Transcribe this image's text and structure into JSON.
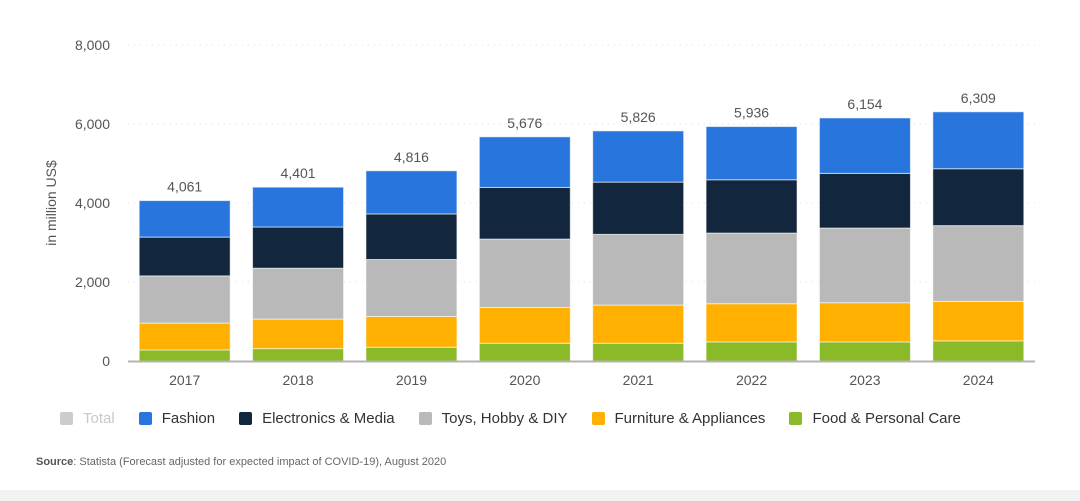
{
  "chart_data": {
    "type": "bar",
    "stacked": true,
    "categories": [
      "2017",
      "2018",
      "2019",
      "2020",
      "2021",
      "2022",
      "2023",
      "2024"
    ],
    "totals": [
      "4,061",
      "4,401",
      "4,816",
      "5,676",
      "5,826",
      "5,936",
      "6,154",
      "6,309"
    ],
    "total_values": [
      4061,
      4401,
      4816,
      5676,
      5826,
      5936,
      6154,
      6309
    ],
    "series": [
      {
        "name": "Food & Personal Care",
        "color": "#8aba27",
        "values": [
          280,
          313,
          348,
          450,
          450,
          483,
          483,
          509
        ]
      },
      {
        "name": "Furniture & Appliances",
        "color": "#ffb000",
        "values": [
          680,
          748,
          779,
          906,
          967,
          967,
          993,
          1000
        ]
      },
      {
        "name": "Toys, Hobby & DIY",
        "color": "#b9b9b9",
        "values": [
          1195,
          1288,
          1443,
          1731,
          1789,
          1789,
          1890,
          1918
        ]
      },
      {
        "name": "Electronics & Media",
        "color": "#12273e",
        "values": [
          982,
          1043,
          1153,
          1307,
          1323,
          1349,
          1384,
          1440
        ]
      },
      {
        "name": "Fashion",
        "color": "#2876dd",
        "values": [
          924,
          1009,
          1093,
          1282,
          1297,
          1348,
          1404,
          1442
        ]
      }
    ],
    "ylabel": "in million US$",
    "ylim": [
      0,
      8000
    ],
    "yticks": [
      0,
      2000,
      4000,
      6000,
      8000
    ],
    "ytick_labels": [
      "0",
      "2,000",
      "4,000",
      "6,000",
      "8,000"
    ],
    "grid": true,
    "legend_placement": "bottom",
    "legend": [
      {
        "name": "Total",
        "color": "#cccccc",
        "muted": true
      },
      {
        "name": "Fashion",
        "color": "#2876dd"
      },
      {
        "name": "Electronics & Media",
        "color": "#12273e"
      },
      {
        "name": "Toys, Hobby & DIY",
        "color": "#b9b9b9"
      },
      {
        "name": "Furniture & Appliances",
        "color": "#ffb000"
      },
      {
        "name": "Food & Personal Care",
        "color": "#8aba27"
      }
    ]
  },
  "source": {
    "label": "Source",
    "text": ": Statista (Forecast adjusted for expected impact of COVID-19), August 2020"
  }
}
